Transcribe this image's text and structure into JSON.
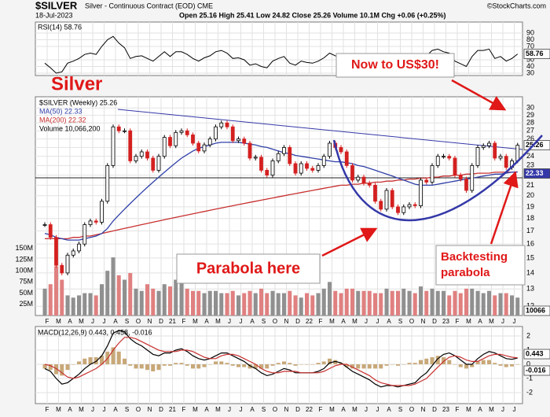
{
  "chart_data": {
    "type": "candlestick",
    "title": "$SILVER",
    "subtitle": "Silver - Continuous Contract (EOD) CME",
    "source": "©StockCharts.com",
    "date": "18-Jul-2023",
    "quote": "Open 25.16  High 25.41  Low 24.82  Close 25.26  Volume 10.1M  Chg +0.06 (+0.25%)",
    "x_labels": [
      "F",
      "M",
      "A",
      "M",
      "J",
      "J",
      "A",
      "S",
      "O",
      "N",
      "D",
      "21",
      "F",
      "M",
      "A",
      "M",
      "J",
      "J",
      "A",
      "S",
      "O",
      "N",
      "D",
      "22",
      "F",
      "M",
      "A",
      "M",
      "J",
      "J",
      "A",
      "S",
      "O",
      "N",
      "D",
      "23",
      "F",
      "M",
      "A",
      "M",
      "J",
      "J"
    ],
    "price": {
      "log": true,
      "ylim": [
        11.5,
        31.6
      ],
      "yticks": [
        12,
        13,
        14,
        15,
        16,
        17,
        18,
        19,
        20,
        21,
        22,
        23,
        24,
        25,
        26,
        27,
        28,
        29,
        30
      ],
      "last_label": "25.26",
      "ma_label": "22.33",
      "up_color": "#000000",
      "down_color": "#d42020",
      "series": [
        {
          "name": "$SILVER (Weekly) 25.26",
          "color": "#000000",
          "values": [
            17.5,
            16.5,
            14.5,
            14.0,
            15.2,
            15.5,
            16.0,
            17.5,
            17.8,
            17.7,
            19.5,
            23.0,
            27.5,
            27.0,
            27.0,
            23.5,
            24.0,
            24.5,
            23.8,
            22.5,
            24.0,
            26.2,
            25.2,
            26.8,
            27.0,
            26.5,
            25.5,
            24.6,
            25.3,
            26.0,
            27.5,
            28.0,
            27.5,
            25.8,
            26.0,
            25.5,
            23.8,
            23.9,
            22.5,
            22.0,
            23.5,
            24.3,
            25.0,
            23.2,
            22.2,
            23.2,
            22.7,
            22.5,
            23.0,
            24.0,
            25.5,
            25.0,
            24.5,
            23.0,
            21.5,
            21.8,
            21.2,
            21.0,
            19.5,
            18.8,
            20.5,
            19.0,
            18.5,
            19.0,
            19.2,
            19.1,
            21.5,
            21.3,
            23.0,
            24.0,
            24.0,
            23.8,
            22.0,
            21.6,
            20.5,
            23.0,
            25.0,
            25.2,
            25.5,
            23.8,
            24.0,
            22.8,
            23.5,
            25.26
          ]
        },
        {
          "name": "MA(50) 22.33",
          "color": "#3040a8",
          "values": [
            16.8,
            16.7,
            16.5,
            16.4,
            16.3,
            16.3,
            16.3,
            16.4,
            16.5,
            16.6,
            16.8,
            17.2,
            17.8,
            18.3,
            18.8,
            19.3,
            19.8,
            20.3,
            20.8,
            21.3,
            21.8,
            22.3,
            22.8,
            23.3,
            23.8,
            24.2,
            24.6,
            24.9,
            25.1,
            25.3,
            25.5,
            25.6,
            25.6,
            25.6,
            25.6,
            25.5,
            25.4,
            25.3,
            25.1,
            25.0,
            24.8,
            24.6,
            24.4,
            24.3,
            24.1,
            24.0,
            23.9,
            23.8,
            23.7,
            23.6,
            23.5,
            23.4,
            23.4,
            23.3,
            23.2,
            23.0,
            22.9,
            22.7,
            22.5,
            22.3,
            22.1,
            21.9,
            21.7,
            21.5,
            21.3,
            21.1,
            21.0,
            21.0,
            21.0,
            21.1,
            21.2,
            21.3,
            21.4,
            21.5,
            21.6,
            21.7,
            21.8,
            21.9,
            22.0,
            22.1,
            22.1,
            22.2,
            22.3,
            22.33
          ]
        },
        {
          "name": "MA(200) 22.32",
          "color": "#c83030",
          "values": [
            16.4,
            16.4,
            16.4,
            16.4,
            16.4,
            16.5,
            16.5,
            16.6,
            16.6,
            16.7,
            16.8,
            16.9,
            17.0,
            17.1,
            17.2,
            17.3,
            17.4,
            17.5,
            17.6,
            17.7,
            17.8,
            17.9,
            18.0,
            18.1,
            18.2,
            18.3,
            18.4,
            18.5,
            18.6,
            18.7,
            18.8,
            18.9,
            19.0,
            19.1,
            19.2,
            19.3,
            19.4,
            19.5,
            19.6,
            19.7,
            19.8,
            19.9,
            20.0,
            20.1,
            20.2,
            20.3,
            20.4,
            20.5,
            20.6,
            20.7,
            20.8,
            20.9,
            21.0,
            21.0,
            21.1,
            21.1,
            21.2,
            21.2,
            21.3,
            21.3,
            21.4,
            21.4,
            21.5,
            21.5,
            21.6,
            21.6,
            21.7,
            21.7,
            21.8,
            21.8,
            21.9,
            21.9,
            22.0,
            22.0,
            22.1,
            22.1,
            22.2,
            22.2,
            22.2,
            22.3,
            22.3,
            22.3,
            22.3,
            22.32
          ]
        }
      ],
      "volume": {
        "name": "Volume 10,066,200",
        "color": "#909090",
        "down_color": "#e08080",
        "last_label": "10066",
        "ylim": [
          0,
          489
        ],
        "yticks": [
          {
            "value": 25,
            "label": "25M"
          },
          {
            "value": 50,
            "label": "50M"
          },
          {
            "value": 75,
            "label": "75M"
          },
          {
            "value": 100,
            "label": "100M"
          },
          {
            "value": 125,
            "label": "125M"
          },
          {
            "value": 150,
            "label": "150M"
          }
        ],
        "values": [
          60,
          70,
          110,
          80,
          45,
          40,
          45,
          50,
          50,
          45,
          70,
          100,
          130,
          90,
          80,
          95,
          60,
          55,
          70,
          60,
          55,
          70,
          65,
          80,
          100,
          60,
          55,
          55,
          50,
          55,
          55,
          50,
          50,
          55,
          45,
          50,
          55,
          50,
          60,
          50,
          55,
          50,
          50,
          55,
          45,
          40,
          50,
          45,
          50,
          60,
          75,
          55,
          50,
          60,
          60,
          55,
          55,
          55,
          50,
          50,
          60,
          55,
          55,
          60,
          55,
          50,
          65,
          55,
          60,
          55,
          55,
          45,
          55,
          50,
          60,
          60,
          55,
          50,
          55,
          45,
          50,
          50,
          45,
          40
        ]
      }
    },
    "rsi": {
      "label": "RSI(14) 58.76",
      "last_label": "58.76",
      "color": "#000000",
      "ylim": [
        26.5,
        106.5
      ],
      "yticks": [
        30,
        40,
        50,
        70,
        80,
        90
      ],
      "values": [
        45,
        38,
        30,
        32,
        45,
        48,
        52,
        58,
        60,
        58,
        70,
        80,
        85,
        75,
        68,
        52,
        55,
        56,
        52,
        48,
        55,
        62,
        55,
        62,
        62,
        58,
        52,
        48,
        53,
        56,
        62,
        64,
        60,
        52,
        53,
        50,
        42,
        44,
        40,
        38,
        48,
        52,
        55,
        45,
        42,
        48,
        46,
        45,
        48,
        53,
        60,
        56,
        52,
        45,
        40,
        42,
        40,
        38,
        35,
        32,
        45,
        38,
        35,
        40,
        42,
        42,
        58,
        56,
        64,
        66,
        62,
        60,
        48,
        44,
        40,
        55,
        64,
        64,
        66,
        52,
        55,
        48,
        52,
        58.76
      ]
    },
    "macd": {
      "label": "MACD(12,26,9) 0.443, 0.458, -0.016",
      "right_labels": [
        "0.443",
        "-0.016"
      ],
      "hist_color": "#c8a878",
      "ylim": [
        -2.78,
        2.67
      ],
      "yticks": [
        -2,
        -1,
        0,
        1,
        2
      ],
      "series": [
        {
          "name": "MACD",
          "color": "#000000",
          "values": [
            -0.3,
            -0.5,
            -1.0,
            -1.4,
            -1.3,
            -1.0,
            -0.7,
            -0.3,
            0.0,
            0.2,
            0.6,
            1.3,
            2.2,
            2.4,
            2.3,
            1.8,
            1.5,
            1.3,
            1.0,
            0.7,
            0.6,
            0.8,
            0.8,
            1.0,
            1.1,
            0.9,
            0.6,
            0.4,
            0.3,
            0.4,
            0.6,
            0.8,
            0.8,
            0.6,
            0.4,
            0.2,
            -0.1,
            -0.3,
            -0.6,
            -0.8,
            -0.7,
            -0.5,
            -0.3,
            -0.4,
            -0.6,
            -0.6,
            -0.6,
            -0.6,
            -0.5,
            -0.3,
            0.1,
            0.2,
            0.1,
            -0.2,
            -0.5,
            -0.7,
            -0.9,
            -1.1,
            -1.4,
            -1.6,
            -1.5,
            -1.5,
            -1.6,
            -1.5,
            -1.4,
            -1.3,
            -0.9,
            -0.6,
            -0.1,
            0.4,
            0.7,
            0.8,
            0.6,
            0.3,
            0.0,
            0.0,
            0.4,
            0.7,
            0.9,
            0.8,
            0.6,
            0.4,
            0.35,
            0.443
          ]
        },
        {
          "name": "Signal",
          "color": "#c83030",
          "values": [
            0.0,
            -0.1,
            -0.3,
            -0.6,
            -0.9,
            -1.0,
            -0.9,
            -0.7,
            -0.5,
            -0.3,
            0.0,
            0.4,
            1.0,
            1.5,
            1.9,
            1.9,
            1.8,
            1.6,
            1.4,
            1.2,
            1.0,
            0.9,
            0.9,
            0.9,
            1.0,
            1.0,
            0.9,
            0.7,
            0.5,
            0.4,
            0.4,
            0.6,
            0.7,
            0.7,
            0.6,
            0.4,
            0.2,
            0.0,
            -0.3,
            -0.5,
            -0.6,
            -0.6,
            -0.5,
            -0.5,
            -0.5,
            -0.6,
            -0.6,
            -0.6,
            -0.6,
            -0.5,
            -0.3,
            -0.1,
            0.0,
            0.0,
            -0.2,
            -0.4,
            -0.6,
            -0.8,
            -1.1,
            -1.3,
            -1.4,
            -1.5,
            -1.5,
            -1.5,
            -1.5,
            -1.4,
            -1.2,
            -1.0,
            -0.6,
            -0.2,
            0.2,
            0.5,
            0.6,
            0.5,
            0.3,
            0.2,
            0.2,
            0.4,
            0.6,
            0.7,
            0.7,
            0.6,
            0.5,
            0.458
          ]
        }
      ]
    },
    "annotations": {
      "headline": "Silver",
      "target": "Now to US$30!",
      "parabola": "Parabola here",
      "backtest": [
        "Backtesting",
        "parabola"
      ]
    }
  }
}
